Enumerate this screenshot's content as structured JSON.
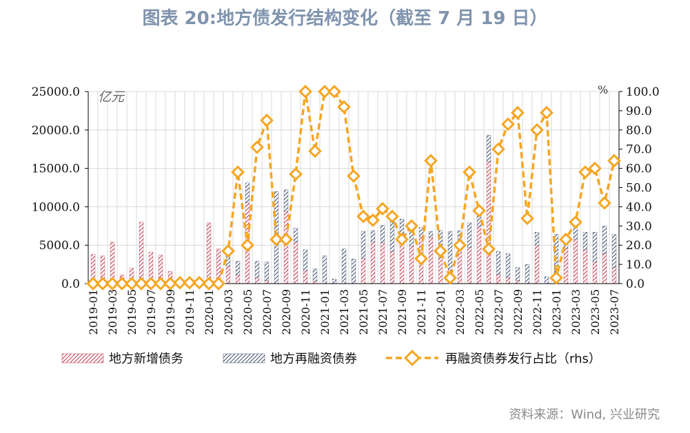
{
  "title": "图表 20:地方债发行结构变化（截至 7 月 19 日）",
  "source": "资料来源：Wind, 兴业研究",
  "colors": {
    "new_bond": "#c0344a",
    "refi_bond": "#3a4a6b",
    "ratio_line": "#f5a623",
    "axis": "#000000",
    "grid": "#d9d9d9"
  },
  "chart_data": {
    "type": "bar",
    "left_unit": "亿元",
    "right_unit": "%",
    "ylim_left": [
      0,
      25000
    ],
    "ylim_right": [
      0,
      100
    ],
    "left_ticks": [
      "25000.0",
      "20000.0",
      "15000.0",
      "10000.0",
      "5000.0",
      "0.0"
    ],
    "right_ticks": [
      "100.0",
      "90.0",
      "80.0",
      "70.0",
      "60.0",
      "50.0",
      "40.0",
      "30.0",
      "20.0",
      "10.0",
      "0.0"
    ],
    "grid": true,
    "legend_position": "bottom",
    "x_tick_labels": [
      "2019-01",
      "2019-03",
      "2019-05",
      "2019-07",
      "2019-09",
      "2019-11",
      "2020-01",
      "2020-03",
      "2020-05",
      "2020-07",
      "2020-09",
      "2020-11",
      "2021-01",
      "2021-03",
      "2021-05",
      "2021-07",
      "2021-09",
      "2021-11",
      "2022-01",
      "2022-03",
      "2022-05",
      "2022-07",
      "2022-09",
      "2022-11",
      "2023-01",
      "2023-03",
      "2023-05",
      "2023-07"
    ],
    "categories": [
      "2019-01",
      "2019-02",
      "2019-03",
      "2019-04",
      "2019-05",
      "2019-06",
      "2019-07",
      "2019-08",
      "2019-09",
      "2019-10",
      "2019-11",
      "2019-12",
      "2020-01",
      "2020-02",
      "2020-03",
      "2020-04",
      "2020-05",
      "2020-06",
      "2020-07",
      "2020-08",
      "2020-09",
      "2020-10",
      "2020-11",
      "2020-12",
      "2021-01",
      "2021-02",
      "2021-03",
      "2021-04",
      "2021-05",
      "2021-06",
      "2021-07",
      "2021-08",
      "2021-09",
      "2021-10",
      "2021-11",
      "2021-12",
      "2022-01",
      "2022-02",
      "2022-03",
      "2022-04",
      "2022-05",
      "2022-06",
      "2022-07",
      "2022-08",
      "2022-09",
      "2022-10",
      "2022-11",
      "2022-12",
      "2023-01",
      "2023-02",
      "2023-03",
      "2023-04",
      "2023-05",
      "2023-06",
      "2023-07"
    ],
    "series": [
      {
        "name": "地方新增债务",
        "kind": "bar",
        "values": [
          3800,
          3600,
          5400,
          1100,
          2000,
          8000,
          4100,
          3700,
          1600,
          0,
          0,
          0,
          7900,
          4500,
          2300,
          1100,
          10500,
          800,
          400,
          0,
          9400,
          5400,
          1700,
          300,
          0,
          0,
          0,
          0,
          3300,
          5400,
          5300,
          4200,
          6500,
          4900,
          6100,
          6000,
          3400,
          1800,
          5100,
          4700,
          7500,
          15900,
          1200,
          800,
          400,
          0,
          5000,
          0,
          0,
          4600,
          5800,
          4400,
          2800,
          3900,
          2100
        ]
      },
      {
        "name": "地方再融资债券",
        "kind": "bar",
        "values": [
          0,
          0,
          0,
          0,
          0,
          0,
          0,
          0,
          0,
          200,
          300,
          200,
          0,
          0,
          2400,
          1800,
          2600,
          2100,
          2400,
          12000,
          2800,
          1800,
          2700,
          1600,
          3600,
          600,
          4500,
          3200,
          3500,
          1500,
          2300,
          4100,
          1900,
          2600,
          1200,
          800,
          3500,
          5000,
          1800,
          3200,
          1600,
          3400,
          3000,
          3100,
          1700,
          2500,
          1700,
          900,
          6400,
          1400,
          1500,
          2300,
          3900,
          3600,
          4300
        ]
      },
      {
        "name": "再融资债券发行占比（rhs）",
        "kind": "line",
        "axis": "right",
        "values": [
          0,
          0,
          0,
          0,
          0,
          0,
          0,
          0,
          0,
          0.5,
          0.5,
          0.5,
          0,
          0,
          17,
          58,
          20,
          71,
          85,
          23,
          23,
          57,
          100,
          69,
          100,
          100,
          92,
          56,
          35,
          33,
          39,
          35,
          23,
          30,
          13,
          64,
          17,
          3,
          20,
          58,
          38,
          18,
          70,
          83,
          89,
          34,
          80,
          89,
          3,
          23,
          32,
          58,
          60,
          42,
          64
        ]
      }
    ]
  }
}
